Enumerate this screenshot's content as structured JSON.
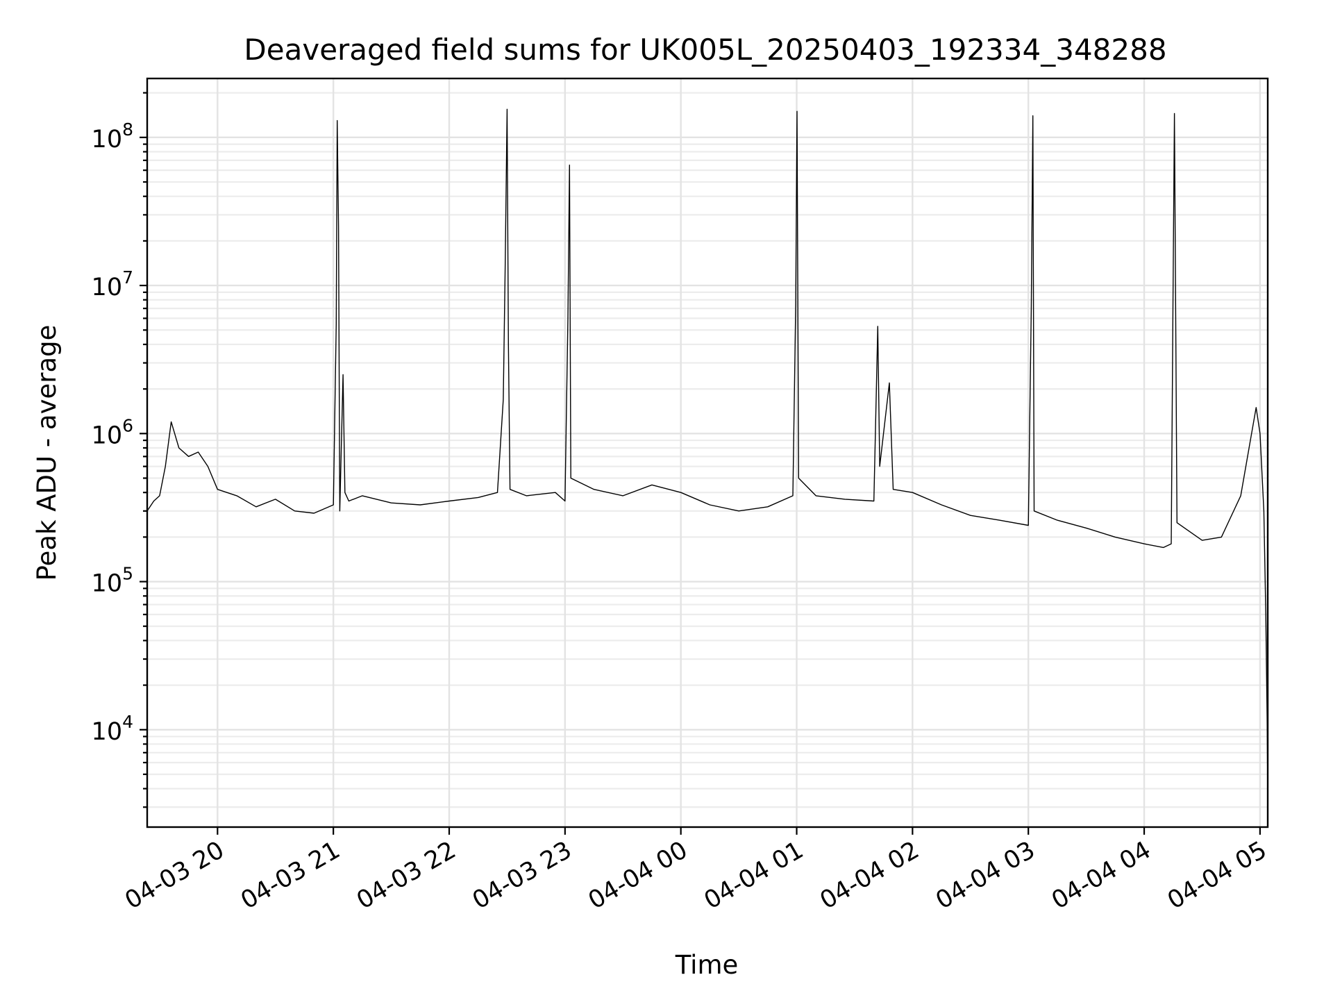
{
  "chart_data": {
    "type": "line",
    "title": "Deaveraged field sums for UK005L_20250403_192334_348288",
    "xlabel": "Time",
    "ylabel": "Peak ADU - average",
    "x_scale": "time",
    "y_scale": "log",
    "xlim": [
      "2025-04-03T19:23:34",
      "2025-04-04T05:04:00"
    ],
    "ylim": [
      2200,
      250000000
    ],
    "grid": true,
    "legend": "none",
    "line_color": "#000000",
    "x_ticks": [
      {
        "value": "2025-04-03T20:00:00",
        "label": "04-03 20"
      },
      {
        "value": "2025-04-03T21:00:00",
        "label": "04-03 21"
      },
      {
        "value": "2025-04-03T22:00:00",
        "label": "04-03 22"
      },
      {
        "value": "2025-04-03T23:00:00",
        "label": "04-03 23"
      },
      {
        "value": "2025-04-04T00:00:00",
        "label": "04-04 00"
      },
      {
        "value": "2025-04-04T01:00:00",
        "label": "04-04 01"
      },
      {
        "value": "2025-04-04T02:00:00",
        "label": "04-04 02"
      },
      {
        "value": "2025-04-04T03:00:00",
        "label": "04-04 03"
      },
      {
        "value": "2025-04-04T04:00:00",
        "label": "04-04 04"
      },
      {
        "value": "2025-04-04T05:00:00",
        "label": "04-04 05"
      }
    ],
    "y_ticks": [
      {
        "value": 10000,
        "base": "10",
        "exp": "4"
      },
      {
        "value": 100000,
        "base": "10",
        "exp": "5"
      },
      {
        "value": 1000000,
        "base": "10",
        "exp": "6"
      },
      {
        "value": 10000000,
        "base": "10",
        "exp": "7"
      },
      {
        "value": 100000000,
        "base": "10",
        "exp": "8"
      }
    ],
    "series": [
      {
        "x": [
          "2025-04-03T19:23:34",
          "2025-04-03T19:27:00",
          "2025-04-03T19:30:00",
          "2025-04-03T19:33:00",
          "2025-04-03T19:36:00",
          "2025-04-03T19:40:00",
          "2025-04-03T19:45:00",
          "2025-04-03T19:50:00",
          "2025-04-03T19:55:00",
          "2025-04-03T20:00:00",
          "2025-04-03T20:10:00",
          "2025-04-03T20:20:00",
          "2025-04-03T20:30:00",
          "2025-04-03T20:40:00",
          "2025-04-03T20:50:00",
          "2025-04-03T21:00:00",
          "2025-04-03T21:01:30",
          "2025-04-03T21:02:00",
          "2025-04-03T21:02:40",
          "2025-04-03T21:03:20",
          "2025-04-03T21:05:00",
          "2025-04-03T21:06:00",
          "2025-04-03T21:08:00",
          "2025-04-03T21:15:00",
          "2025-04-03T21:30:00",
          "2025-04-03T21:45:00",
          "2025-04-03T22:00:00",
          "2025-04-03T22:15:00",
          "2025-04-03T22:25:00",
          "2025-04-03T22:28:00",
          "2025-04-03T22:29:00",
          "2025-04-03T22:30:00",
          "2025-04-03T22:30:40",
          "2025-04-03T22:31:30",
          "2025-04-03T22:40:00",
          "2025-04-03T22:55:00",
          "2025-04-03T23:00:00",
          "2025-04-03T23:01:30",
          "2025-04-03T23:02:20",
          "2025-04-03T23:03:00",
          "2025-04-03T23:15:00",
          "2025-04-03T23:30:00",
          "2025-04-03T23:45:00",
          "2025-04-04T00:00:00",
          "2025-04-04T00:15:00",
          "2025-04-04T00:30:00",
          "2025-04-04T00:45:00",
          "2025-04-04T00:58:00",
          "2025-04-04T00:59:30",
          "2025-04-04T01:00:10",
          "2025-04-04T01:01:00",
          "2025-04-04T01:10:00",
          "2025-04-04T01:25:00",
          "2025-04-04T01:40:00",
          "2025-04-04T01:42:00",
          "2025-04-04T01:43:00",
          "2025-04-04T01:48:00",
          "2025-04-04T01:50:00",
          "2025-04-04T02:00:00",
          "2025-04-04T02:15:00",
          "2025-04-04T02:30:00",
          "2025-04-04T02:45:00",
          "2025-04-04T03:00:00",
          "2025-04-04T03:01:30",
          "2025-04-04T03:02:20",
          "2025-04-04T03:03:00",
          "2025-04-04T03:15:00",
          "2025-04-04T03:30:00",
          "2025-04-04T03:45:00",
          "2025-04-04T04:00:00",
          "2025-04-04T04:10:00",
          "2025-04-04T04:14:00",
          "2025-04-04T04:15:00",
          "2025-04-04T04:15:40",
          "2025-04-04T04:17:00",
          "2025-04-04T04:30:00",
          "2025-04-04T04:40:00",
          "2025-04-04T04:50:00",
          "2025-04-04T04:55:00",
          "2025-04-04T04:58:00",
          "2025-04-04T05:00:00",
          "2025-04-04T05:02:00",
          "2025-04-04T05:03:00",
          "2025-04-04T05:03:40",
          "2025-04-04T05:04:00"
        ],
        "y": [
          300000,
          350000,
          380000,
          600000,
          1200000,
          800000,
          700000,
          750000,
          600000,
          420000,
          380000,
          320000,
          360000,
          300000,
          290000,
          330000,
          5500000,
          130000000,
          25000000,
          300000,
          2500000,
          400000,
          350000,
          380000,
          340000,
          330000,
          350000,
          370000,
          400000,
          1700000,
          13000000,
          155000000,
          4000000,
          420000,
          380000,
          400000,
          350000,
          6000000,
          65000000,
          500000,
          420000,
          380000,
          450000,
          400000,
          330000,
          300000,
          320000,
          380000,
          7500000,
          150000000,
          500000,
          380000,
          360000,
          350000,
          5300000,
          600000,
          2200000,
          420000,
          400000,
          330000,
          280000,
          260000,
          240000,
          7000000,
          140000000,
          300000,
          260000,
          230000,
          200000,
          180000,
          170000,
          180000,
          10000000,
          145000000,
          250000,
          190000,
          200000,
          380000,
          900000,
          1500000,
          1000000,
          300000,
          60000,
          12000,
          3800
        ]
      }
    ]
  }
}
